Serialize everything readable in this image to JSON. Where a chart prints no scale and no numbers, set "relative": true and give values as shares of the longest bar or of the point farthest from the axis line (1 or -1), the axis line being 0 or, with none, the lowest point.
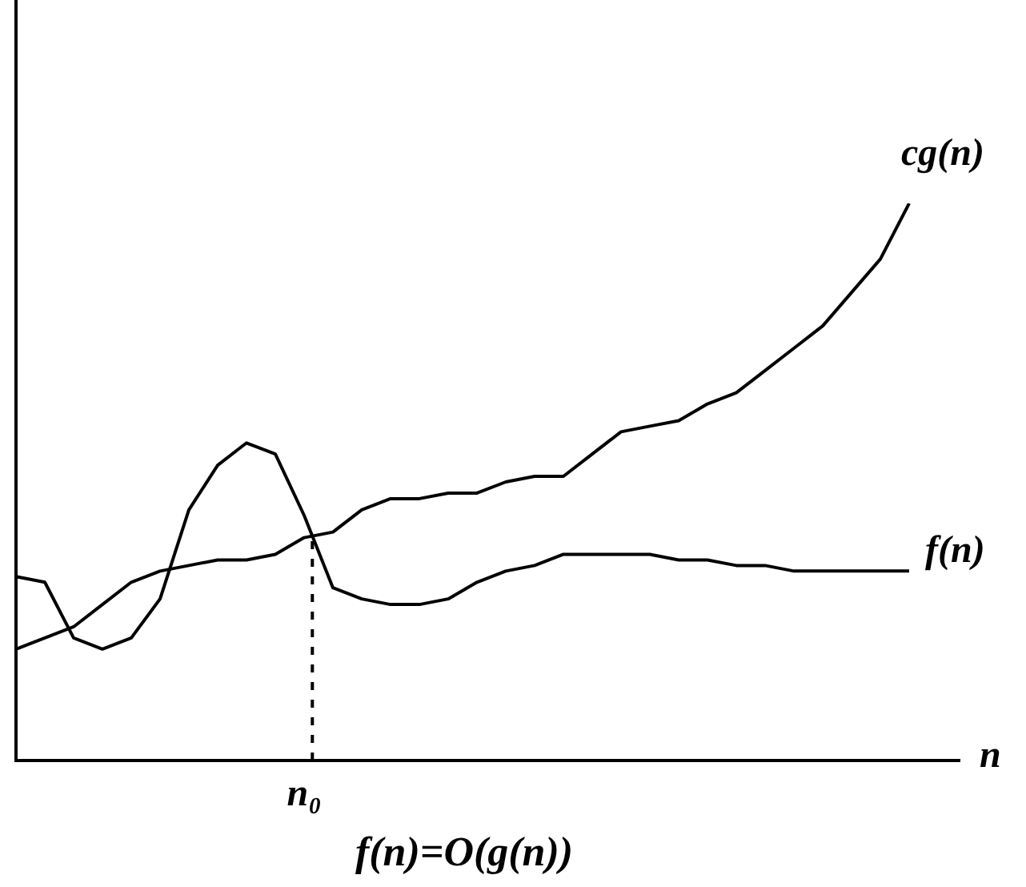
{
  "chart_data": {
    "type": "line",
    "title": "f(n)=O(g(n))",
    "xlabel": "n",
    "relative": true,
    "marker": "none",
    "categories": [
      null,
      null,
      null,
      null,
      null,
      null,
      null,
      null,
      null,
      null,
      null,
      null,
      null,
      null,
      null,
      null,
      null,
      null,
      null,
      null,
      null,
      null,
      null,
      null,
      null,
      null,
      null,
      null,
      null,
      null,
      null,
      null
    ],
    "series": [
      {
        "name": "cg(n)",
        "color": "#000000",
        "values": [
          0.2,
          0.22,
          0.24,
          0.28,
          0.32,
          0.34,
          0.35,
          0.36,
          0.36,
          0.37,
          0.4,
          0.41,
          0.45,
          0.47,
          0.47,
          0.48,
          0.48,
          0.5,
          0.51,
          0.51,
          0.55,
          0.59,
          0.6,
          0.61,
          0.64,
          0.66,
          0.7,
          0.74,
          0.78,
          0.84,
          0.9,
          1
        ]
      },
      {
        "name": "f(n)",
        "color": "#000000",
        "values": [
          0.33,
          0.32,
          0.22,
          0.2,
          0.22,
          0.29,
          0.45,
          0.53,
          0.57,
          0.55,
          0.44,
          0.31,
          0.29,
          0.28,
          0.28,
          0.29,
          0.32,
          0.34,
          0.35,
          0.37,
          0.37,
          0.37,
          0.37,
          0.36,
          0.36,
          0.35,
          0.35,
          0.34,
          0.34,
          0.34,
          0.34,
          0.34
        ]
      }
    ],
    "annotations": [
      "n₀"
    ]
  }
}
